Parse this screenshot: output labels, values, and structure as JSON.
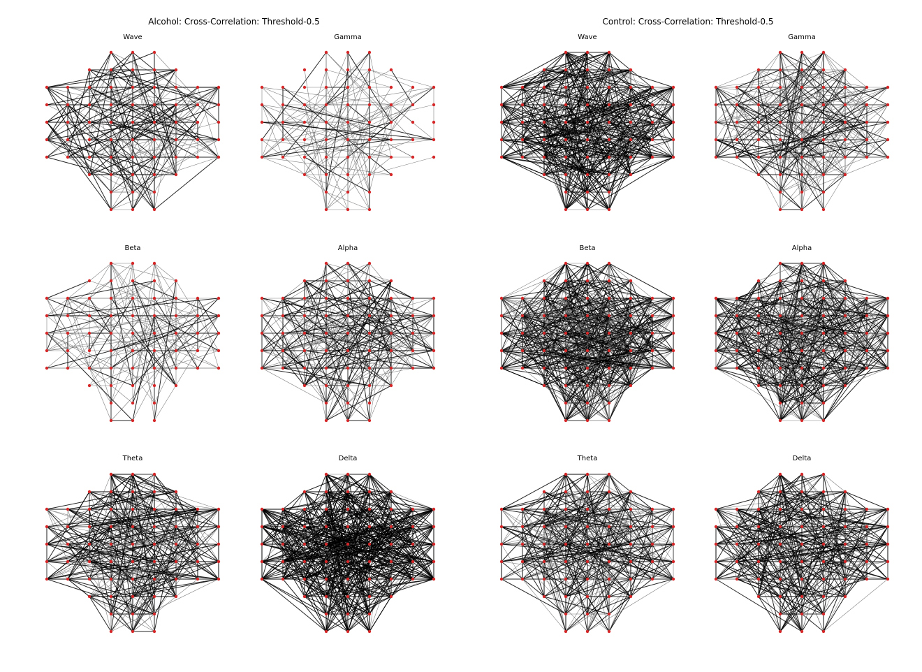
{
  "figure": {
    "groups": [
      {
        "title": "Alcohol: Cross-Correlation: Threshold-0.5",
        "panels": [
          {
            "title": "Wave",
            "density": 0.1,
            "dark_share": 0.55
          },
          {
            "title": "Gamma",
            "density": 0.05,
            "dark_share": 0.15
          },
          {
            "title": "Beta",
            "density": 0.07,
            "dark_share": 0.25
          },
          {
            "title": "Alpha",
            "density": 0.12,
            "dark_share": 0.45
          },
          {
            "title": "Theta",
            "density": 0.16,
            "dark_share": 0.6
          },
          {
            "title": "Delta",
            "density": 0.24,
            "dark_share": 0.9
          }
        ]
      },
      {
        "title": "Control: Cross-Correlation: Threshold-0.5",
        "panels": [
          {
            "title": "Wave",
            "density": 0.22,
            "dark_share": 0.7
          },
          {
            "title": "Gamma",
            "density": 0.14,
            "dark_share": 0.45
          },
          {
            "title": "Beta",
            "density": 0.26,
            "dark_share": 0.55
          },
          {
            "title": "Alpha",
            "density": 0.24,
            "dark_share": 0.5
          },
          {
            "title": "Theta",
            "density": 0.18,
            "dark_share": 0.55
          },
          {
            "title": "Delta",
            "density": 0.18,
            "dark_share": 0.65
          }
        ]
      }
    ],
    "colors": {
      "node": "#d62728",
      "edge_strong": "#000000",
      "edge_weak": "#555555",
      "background": "#ffffff"
    }
  }
}
